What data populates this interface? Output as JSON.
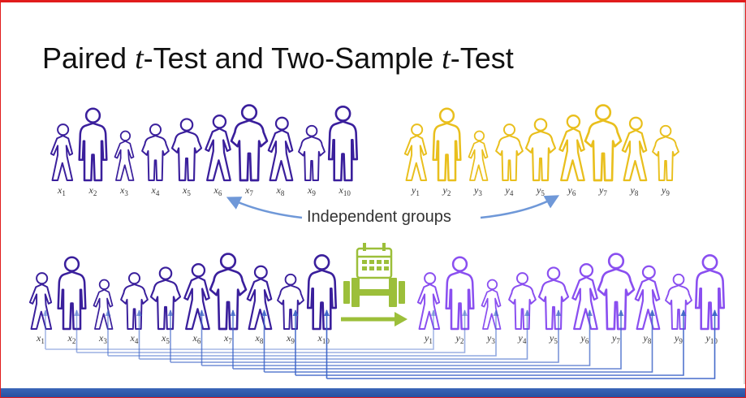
{
  "title": {
    "part1": "Paired ",
    "t1": "t",
    "part2": "-Test and Two-Sample ",
    "t2": "t",
    "part3": "-Test"
  },
  "annotation": "Independent groups",
  "groups": {
    "x_top": {
      "symbol": "x",
      "indices": [
        "1",
        "2",
        "3",
        "4",
        "5",
        "6",
        "7",
        "8",
        "9",
        "10"
      ],
      "color": "#3a1f9c"
    },
    "y_top": {
      "symbol": "y",
      "indices": [
        "1",
        "2",
        "3",
        "4",
        "5",
        "6",
        "7",
        "8",
        "9"
      ],
      "color": "#e9bf1d"
    },
    "x_bottom": {
      "symbol": "x",
      "indices": [
        "1",
        "2",
        "3",
        "4",
        "5",
        "6",
        "7",
        "8",
        "9",
        "10"
      ],
      "color": "#3a1f9c"
    },
    "y_bottom": {
      "symbol": "y",
      "indices": [
        "1",
        "2",
        "3",
        "4",
        "5",
        "6",
        "7",
        "8",
        "9",
        "10"
      ],
      "color": "#8a4ff0"
    }
  },
  "colors": {
    "arrow_blue": "#6f98d8",
    "treatment_green": "#9cbf3a",
    "link_blue": "#3b63c7"
  },
  "icons": [
    "calendar-icon",
    "barbell-icon",
    "right-arrow-icon"
  ]
}
